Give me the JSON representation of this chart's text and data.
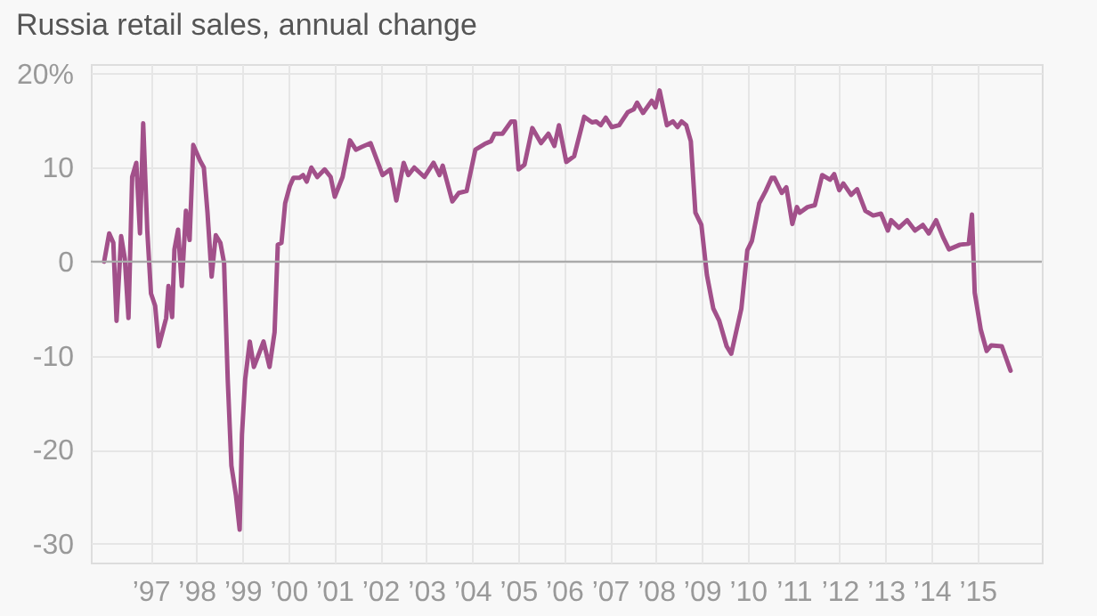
{
  "chart_data": {
    "type": "line",
    "title": "Russia retail sales, annual change",
    "x": [
      1995.99,
      1996.1,
      1996.19,
      1996.26,
      1996.36,
      1996.44,
      1996.52,
      1996.6,
      1996.69,
      1996.77,
      1996.84,
      1996.93,
      1997.01,
      1997.1,
      1997.18,
      1997.34,
      1997.39,
      1997.47,
      1997.52,
      1997.6,
      1997.68,
      1997.77,
      1997.85,
      1997.93,
      1998.08,
      1998.16,
      1998.24,
      1998.33,
      1998.42,
      1998.52,
      1998.6,
      1998.68,
      1998.76,
      1998.86,
      1998.94,
      1998.99,
      1999.06,
      1999.16,
      1999.25,
      1999.36,
      1999.46,
      1999.59,
      1999.7,
      1999.77,
      1999.85,
      1999.93,
      2000.03,
      2000.11,
      2000.24,
      2000.32,
      2000.4,
      2000.5,
      2000.63,
      2000.79,
      2000.92,
      2001.01,
      2001.18,
      2001.34,
      2001.47,
      2001.6,
      2001.79,
      2002.05,
      2002.22,
      2002.35,
      2002.51,
      2002.61,
      2002.74,
      2002.96,
      2003.16,
      2003.29,
      2003.36,
      2003.57,
      2003.71,
      2003.88,
      2004.07,
      2004.27,
      2004.41,
      2004.49,
      2004.66,
      2004.85,
      2004.93,
      2005.01,
      2005.14,
      2005.31,
      2005.5,
      2005.66,
      2005.79,
      2005.89,
      2006.05,
      2006.22,
      2006.44,
      2006.61,
      2006.7,
      2006.8,
      2006.91,
      2007.04,
      2007.2,
      2007.39,
      2007.52,
      2007.59,
      2007.72,
      2007.91,
      2007.99,
      2008.08,
      2008.24,
      2008.37,
      2008.47,
      2008.56,
      2008.66,
      2008.76,
      2008.86,
      2008.99,
      2009.11,
      2009.25,
      2009.38,
      2009.54,
      2009.64,
      2009.86,
      2009.99,
      2010.09,
      2010.25,
      2010.39,
      2010.52,
      2010.58,
      2010.74,
      2010.84,
      2010.97,
      2011.07,
      2011.13,
      2011.3,
      2011.46,
      2011.62,
      2011.79,
      2011.88,
      2011.99,
      2012.08,
      2012.25,
      2012.38,
      2012.56,
      2012.73,
      2012.9,
      2013.05,
      2013.12,
      2013.29,
      2013.47,
      2013.64,
      2013.81,
      2013.94,
      2014.1,
      2014.25,
      2014.38,
      2014.62,
      2014.81,
      2014.88,
      2014.94,
      2015.07,
      2015.2,
      2015.3,
      2015.53,
      2015.72
    ],
    "series": [
      {
        "color": "#a2508a",
        "values": [
          0,
          3.0,
          2,
          -6.3,
          2.7,
          0.3,
          -6,
          9,
          10.5,
          3,
          14.7,
          3.2,
          -3.4,
          -4.7,
          -9,
          -6,
          -2.6,
          -5.9,
          1.3,
          3.4,
          -2.6,
          5.4,
          2.3,
          12.4,
          10.7,
          10,
          5.2,
          -1.6,
          2.8,
          2,
          -0.1,
          -12.5,
          -21.7,
          -24.9,
          -28.5,
          -18.4,
          -12.5,
          -8.5,
          -11.2,
          -9.8,
          -8.5,
          -11.2,
          -7.5,
          1.8,
          2.0,
          6.2,
          8,
          8.9,
          8.9,
          9.2,
          8.5,
          10,
          9,
          9.8,
          9,
          6.9,
          9,
          12.9,
          11.9,
          12.2,
          12.6,
          9.2,
          9.8,
          6.5,
          10.5,
          9.2,
          10,
          9,
          10.5,
          9.2,
          10.2,
          6.4,
          7.3,
          7.5,
          11.9,
          12.5,
          12.8,
          13.6,
          13.6,
          14.9,
          14.9,
          9.8,
          10.3,
          14.2,
          12.6,
          13.6,
          12.3,
          14.5,
          10.6,
          11.2,
          15.4,
          14.8,
          14.9,
          14.5,
          15.3,
          14.3,
          14.5,
          15.9,
          16.2,
          16.9,
          15.8,
          17.1,
          16.4,
          18.2,
          14.5,
          14.9,
          14.3,
          14.9,
          14.5,
          12.8,
          5.2,
          3.9,
          -1.4,
          -5,
          -6.3,
          -9,
          -9.8,
          -5,
          1.2,
          2.2,
          6.2,
          7.5,
          8.9,
          8.9,
          7.3,
          7.9,
          4,
          5.8,
          5.2,
          5.8,
          6,
          9.2,
          8.7,
          9.3,
          7.6,
          8.3,
          7.1,
          7.7,
          5.4,
          4.9,
          5.1,
          3.3,
          4.4,
          3.6,
          4.4,
          3.3,
          3.9,
          3,
          4.4,
          2.6,
          1.3,
          1.8,
          1.9,
          5,
          -3.3,
          -7.2,
          -9.5,
          -8.9,
          -9,
          -11.6
        ]
      }
    ],
    "xlim": [
      1995.7,
      2016.4
    ],
    "xticks": [
      {
        "value": 1997,
        "label": "’97"
      },
      {
        "value": 1998,
        "label": "’98"
      },
      {
        "value": 1999,
        "label": "’99"
      },
      {
        "value": 2000,
        "label": "’00"
      },
      {
        "value": 2001,
        "label": "’01"
      },
      {
        "value": 2002,
        "label": "’02"
      },
      {
        "value": 2003,
        "label": "’03"
      },
      {
        "value": 2004,
        "label": "’04"
      },
      {
        "value": 2005,
        "label": "’05"
      },
      {
        "value": 2006,
        "label": "’06"
      },
      {
        "value": 2007,
        "label": "’07"
      },
      {
        "value": 2008,
        "label": "’08"
      },
      {
        "value": 2009,
        "label": "’09"
      },
      {
        "value": 2010,
        "label": "’10"
      },
      {
        "value": 2011,
        "label": "’11"
      },
      {
        "value": 2012,
        "label": "’12"
      },
      {
        "value": 2013,
        "label": "’13"
      },
      {
        "value": 2014,
        "label": "’14"
      },
      {
        "value": 2015,
        "label": "’15"
      }
    ],
    "ylim": [
      -32,
      21
    ],
    "yticks": [
      {
        "value": 20,
        "label": "20%"
      },
      10,
      0,
      -10,
      -20,
      -30
    ],
    "ref_lines": [
      {
        "axis": "y",
        "value": 0,
        "color": "#aaaaaa"
      }
    ],
    "grid": true,
    "line_style": "solid",
    "marker": "none"
  }
}
